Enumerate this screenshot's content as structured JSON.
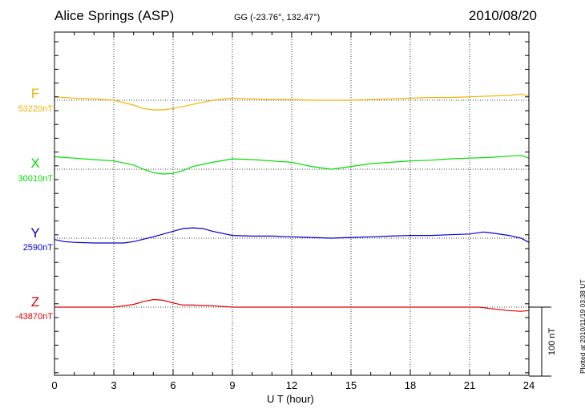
{
  "header": {
    "station": "Alice Springs (ASP)",
    "coords": "GG (-23.76°, 132.47°)",
    "date": "2010/08/20"
  },
  "plotted_note": "Plotted at 2010/11/19 03:38 UT",
  "chart_data": {
    "type": "line",
    "xlabel": "U T (hour)",
    "xlim": [
      0,
      24
    ],
    "xticks": [
      0,
      3,
      6,
      9,
      12,
      15,
      18,
      21,
      24
    ],
    "grid": true,
    "scale_bar_label": "100 nT",
    "scale_bar_nT": 100,
    "series": [
      {
        "name": "F",
        "baseline_label": "53220nT",
        "baseline_nT": 53220,
        "color": "#f0b400",
        "x": [
          0,
          1,
          2,
          3,
          4,
          4.5,
          5,
          5.5,
          6,
          7,
          8,
          9,
          10,
          11,
          12,
          13,
          14,
          15,
          16,
          17,
          18,
          19,
          20,
          21,
          22,
          23,
          23.6,
          24
        ],
        "y": [
          53225,
          53223,
          53222,
          53220,
          53213,
          53208,
          53206,
          53206,
          53208,
          53214,
          53220,
          53223,
          53222,
          53221,
          53221,
          53220,
          53220,
          53220,
          53221,
          53222,
          53223,
          53224,
          53224,
          53225,
          53226,
          53227,
          53229,
          53226
        ]
      },
      {
        "name": "X",
        "baseline_label": "30010nT",
        "baseline_nT": 30010,
        "color": "#00dd00",
        "x": [
          0,
          1,
          2,
          3,
          4,
          4.5,
          5,
          5.5,
          6,
          6.5,
          7,
          8,
          9,
          10,
          11,
          12,
          13,
          14,
          15,
          16,
          17,
          18,
          19,
          20,
          21,
          22,
          23,
          23.6,
          24
        ],
        "y": [
          30028,
          30026,
          30024,
          30022,
          30016,
          30010,
          30005,
          30003,
          30004,
          30008,
          30014,
          30020,
          30025,
          30024,
          30022,
          30020,
          30014,
          30010,
          30014,
          30018,
          30020,
          30022,
          30023,
          30025,
          30026,
          30027,
          30029,
          30030,
          30026
        ]
      },
      {
        "name": "Y",
        "baseline_label": "2590nT",
        "baseline_nT": 2590,
        "color": "#0000cc",
        "x": [
          0,
          0.5,
          1,
          2,
          3,
          3.5,
          4,
          5,
          6,
          6.5,
          7,
          7.5,
          8,
          9,
          10,
          11,
          12,
          13,
          14,
          15,
          16,
          17,
          18,
          19,
          20,
          21,
          21.7,
          22,
          23,
          23.6,
          24
        ],
        "y": [
          2588,
          2585,
          2584,
          2583,
          2583,
          2583,
          2585,
          2592,
          2600,
          2604,
          2605,
          2604,
          2600,
          2594,
          2593,
          2593,
          2592,
          2591,
          2590,
          2591,
          2592,
          2593,
          2594,
          2594,
          2595,
          2596,
          2599,
          2598,
          2594,
          2590,
          2584
        ]
      },
      {
        "name": "Z",
        "baseline_label": "-43870nT",
        "baseline_nT": -43870,
        "color": "#dd0000",
        "x": [
          0,
          1,
          2,
          3,
          4,
          4.5,
          5,
          5.5,
          6,
          6.5,
          7,
          8,
          9,
          10,
          11,
          12,
          13,
          14,
          15,
          16,
          17,
          18,
          19,
          20,
          21,
          21.5,
          22,
          23,
          23.6,
          24
        ],
        "y": [
          -43870,
          -43870,
          -43870,
          -43870,
          -43866,
          -43862,
          -43859,
          -43860,
          -43864,
          -43867,
          -43867,
          -43868,
          -43870,
          -43870,
          -43870,
          -43870,
          -43870,
          -43870,
          -43870,
          -43870,
          -43870,
          -43870,
          -43870,
          -43870,
          -43870,
          -43870,
          -43872,
          -43875,
          -43876,
          -43875
        ]
      }
    ]
  }
}
